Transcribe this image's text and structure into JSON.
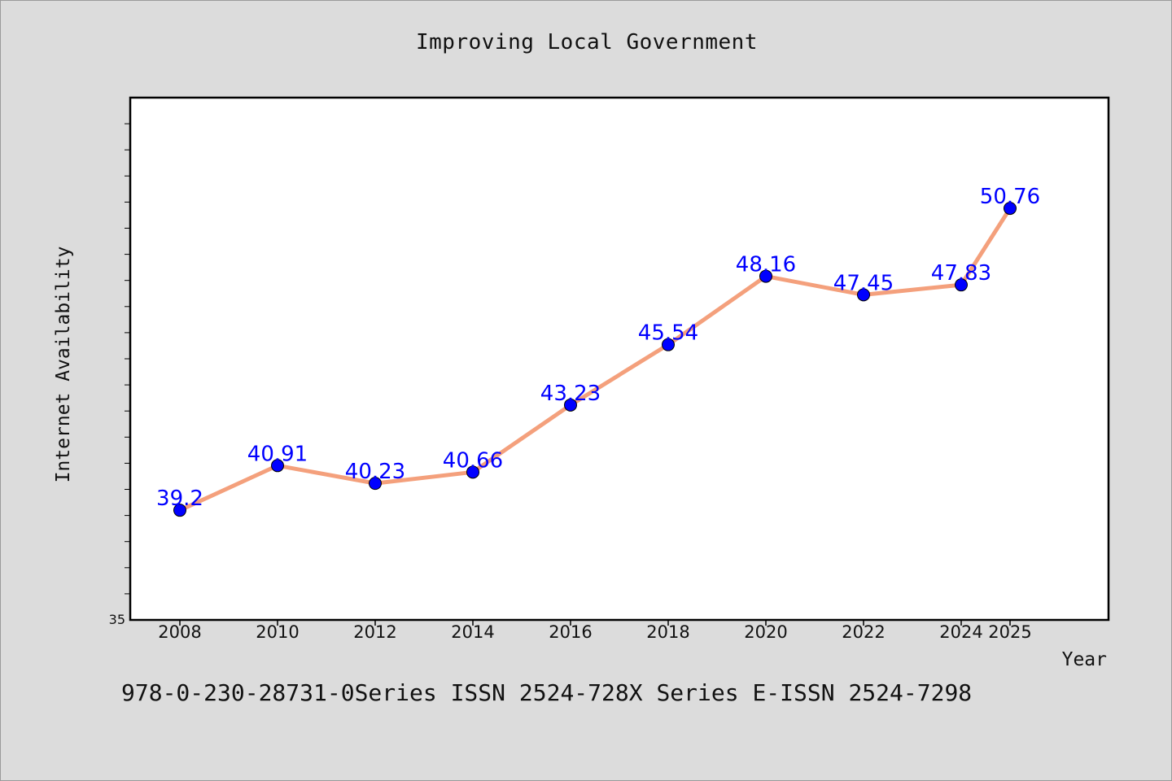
{
  "chart_data": {
    "type": "line",
    "title": "Improving Local Government",
    "xlabel": "Year",
    "ylabel": "Internet Availability",
    "x": [
      "2008",
      "2010",
      "2012",
      "2014",
      "2016",
      "2018",
      "2020",
      "2022",
      "2024",
      "2025"
    ],
    "series": [
      {
        "values": [
          39.2,
          40.91,
          40.23,
          40.66,
          43.23,
          45.54,
          48.16,
          47.45,
          47.83,
          50.76
        ],
        "data_labels": [
          "39.2",
          "40.91",
          "40.23",
          "40.66",
          "43.23",
          "45.54",
          "48.16",
          "47.45",
          "47.83",
          "50.76"
        ]
      }
    ],
    "y_tick_labels": [
      "35"
    ],
    "ylim": [
      35,
      55
    ],
    "grid": false,
    "legend": "none",
    "colors": {
      "line": "#f4a07c",
      "marker": "#0000ff",
      "data_label": "#0000ff"
    }
  },
  "footer": "978-0-230-28731-0Series ISSN 2524-728X Series E-ISSN 2524-7298"
}
